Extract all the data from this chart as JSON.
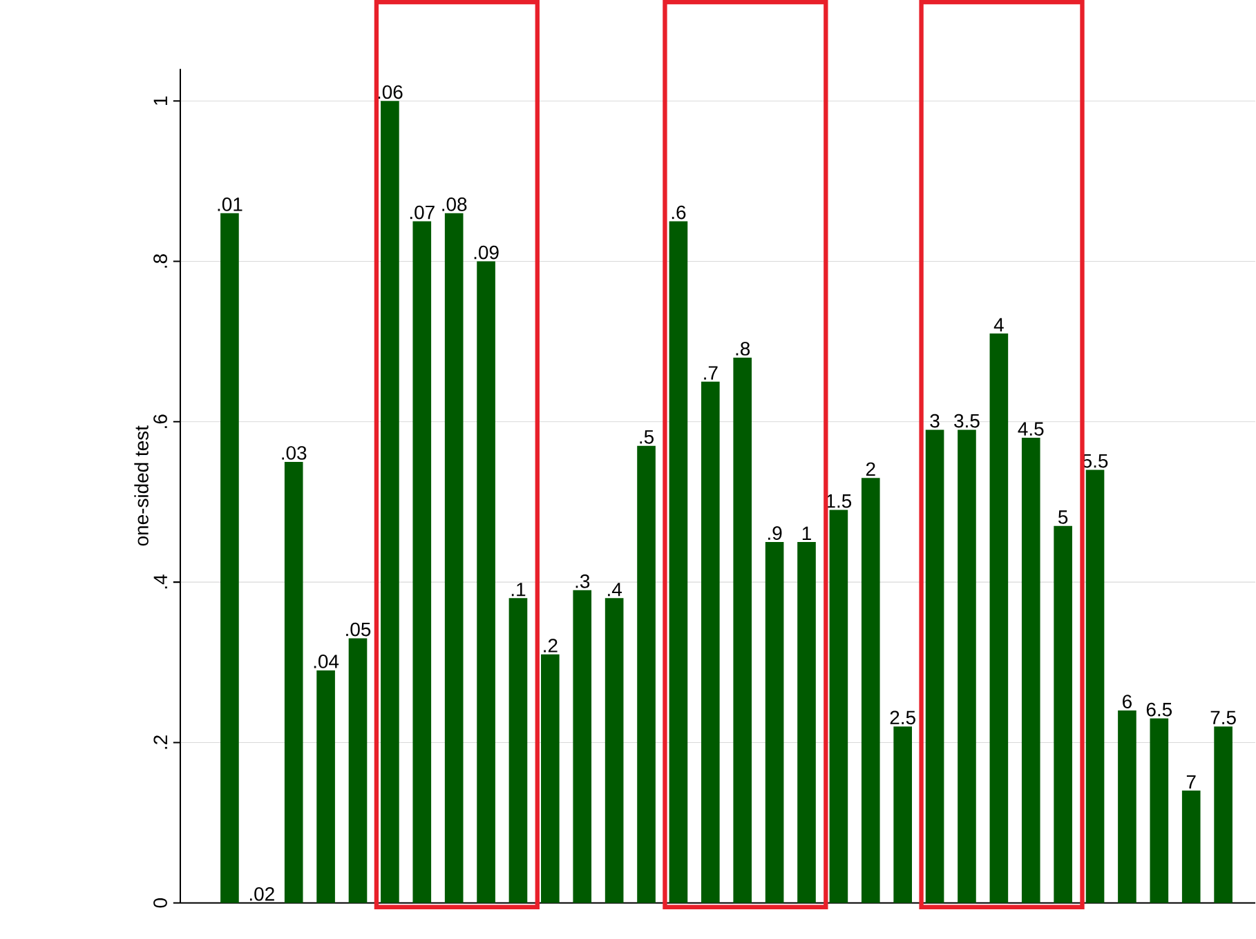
{
  "chart_data": {
    "type": "bar",
    "ylabel": "one-sided test",
    "categories": [
      ".01",
      ".02",
      ".03",
      ".04",
      ".05",
      ".06",
      ".07",
      ".08",
      ".09",
      ".1",
      ".2",
      ".3",
      ".4",
      ".5",
      ".6",
      ".7",
      ".8",
      ".9",
      "1",
      "1.5",
      "2",
      "2.5",
      "3",
      "3.5",
      "4",
      "4.5",
      "5",
      "5.5",
      "6",
      "6.5",
      "7",
      "7.5"
    ],
    "values": [
      0.86,
      0.0,
      0.55,
      0.29,
      0.33,
      1.0,
      0.85,
      0.86,
      0.8,
      0.38,
      0.31,
      0.39,
      0.38,
      0.57,
      0.85,
      0.65,
      0.68,
      0.45,
      0.45,
      0.49,
      0.53,
      0.22,
      0.59,
      0.59,
      0.71,
      0.58,
      0.47,
      0.54,
      0.24,
      0.23,
      0.14,
      0.22
    ],
    "color": "#005a00",
    "ylim": [
      0,
      1.04
    ],
    "yticks": [
      0,
      {
        "value": 0.2,
        "label": ".2"
      },
      {
        "value": 0.4,
        "label": ".4"
      },
      {
        "value": 0.6,
        "label": ".6"
      },
      {
        "value": 0.8,
        "label": ".8"
      },
      1
    ],
    "grid": "y",
    "tick_labels": "y"
  }
}
